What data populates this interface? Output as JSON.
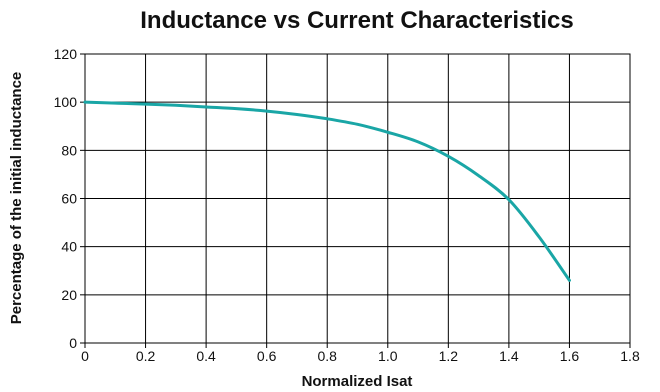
{
  "chart_data": {
    "type": "line",
    "title": "Inductance vs Current Characteristics",
    "xlabel": "Normalized Isat",
    "ylabel": "Percentage of the initial inductance",
    "xlim": [
      0,
      1.8
    ],
    "ylim": [
      0,
      120
    ],
    "x_ticks": [
      "0",
      "0.2",
      "0.4",
      "0.6",
      "0.8",
      "1.0",
      "1.2",
      "1.4",
      "1.6",
      "1.8"
    ],
    "x_tick_values": [
      0,
      0.2,
      0.4,
      0.6,
      0.8,
      1.0,
      1.2,
      1.4,
      1.6,
      1.8
    ],
    "y_ticks": [
      "0",
      "20",
      "40",
      "60",
      "80",
      "100",
      "120"
    ],
    "y_tick_values": [
      0,
      20,
      40,
      60,
      80,
      100,
      120
    ],
    "grid": true,
    "series": [
      {
        "color": "#1aa6a6",
        "x": [
          0,
          0.1,
          0.2,
          0.3,
          0.4,
          0.5,
          0.6,
          0.7,
          0.8,
          0.9,
          1.0,
          1.1,
          1.2,
          1.3,
          1.4,
          1.5,
          1.6
        ],
        "y": [
          100,
          99.6,
          99.2,
          98.7,
          98,
          97.3,
          96.3,
          94.9,
          93.1,
          90.8,
          87.5,
          83.5,
          77.5,
          69.5,
          59.5,
          44,
          26
        ]
      }
    ]
  }
}
